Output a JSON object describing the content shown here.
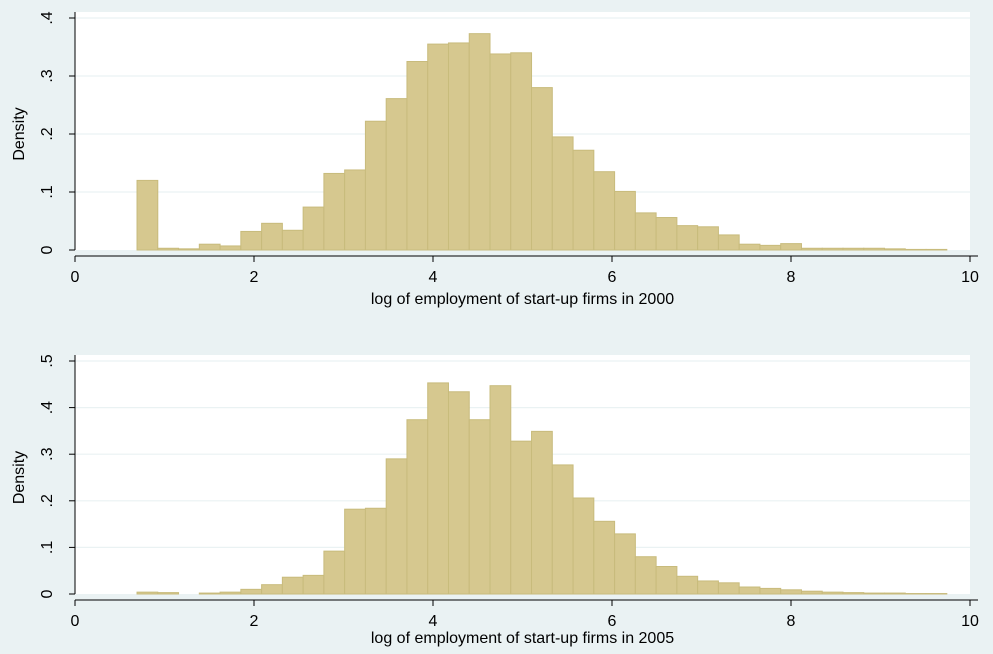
{
  "chart_data": [
    {
      "type": "bar",
      "xlabel": "log of employment of start-up firms in 2000",
      "ylabel": "Density",
      "xlim": [
        0,
        10
      ],
      "ylim": [
        0,
        0.4
      ],
      "xticks": [
        0,
        2,
        4,
        6,
        8,
        10
      ],
      "xtick_labels": [
        "0",
        "2",
        "4",
        "6",
        "8",
        "10"
      ],
      "yticks": [
        0,
        0.1,
        0.2,
        0.3,
        0.4
      ],
      "ytick_labels": [
        "0",
        ".1",
        ".2",
        ".3",
        ".4"
      ],
      "grid": true,
      "bin_width": 0.232,
      "bin_starts": [
        0.693,
        0.925,
        1.157,
        1.389,
        1.621,
        1.853,
        2.085,
        2.317,
        2.549,
        2.781,
        3.013,
        3.245,
        3.477,
        3.709,
        3.941,
        4.173,
        4.405,
        4.637,
        4.869,
        5.101,
        5.333,
        5.565,
        5.797,
        6.029,
        6.261,
        6.493,
        6.725,
        6.957,
        7.189,
        7.421,
        7.653,
        7.885,
        8.117,
        8.349,
        8.581,
        8.813,
        9.045,
        9.277,
        9.509
      ],
      "values": [
        0.12,
        0.003,
        0.002,
        0.01,
        0.007,
        0.032,
        0.046,
        0.034,
        0.074,
        0.132,
        0.138,
        0.222,
        0.261,
        0.325,
        0.355,
        0.357,
        0.373,
        0.338,
        0.34,
        0.28,
        0.195,
        0.172,
        0.135,
        0.101,
        0.064,
        0.056,
        0.042,
        0.04,
        0.026,
        0.01,
        0.008,
        0.011,
        0.003,
        0.003,
        0.003,
        0.003,
        0.002,
        0.001,
        0.001
      ]
    },
    {
      "type": "bar",
      "xlabel": "log of employment of start-up firms in 2005",
      "ylabel": "Density",
      "xlim": [
        0,
        10
      ],
      "ylim": [
        0,
        0.5
      ],
      "xticks": [
        0,
        2,
        4,
        6,
        8,
        10
      ],
      "xtick_labels": [
        "0",
        "2",
        "4",
        "6",
        "8",
        "10"
      ],
      "yticks": [
        0,
        0.1,
        0.2,
        0.3,
        0.4,
        0.5
      ],
      "ytick_labels": [
        "0",
        ".1",
        ".2",
        ".3",
        ".4",
        ".5"
      ],
      "grid": true,
      "bin_width": 0.232,
      "bin_starts": [
        0.693,
        0.925,
        1.157,
        1.389,
        1.621,
        1.853,
        2.085,
        2.317,
        2.549,
        2.781,
        3.013,
        3.245,
        3.477,
        3.709,
        3.941,
        4.173,
        4.405,
        4.637,
        4.869,
        5.101,
        5.333,
        5.565,
        5.797,
        6.029,
        6.261,
        6.493,
        6.725,
        6.957,
        7.189,
        7.421,
        7.653,
        7.885,
        8.117,
        8.349,
        8.581,
        8.813,
        9.045,
        9.277,
        9.509
      ],
      "values": [
        0.004,
        0.003,
        0.0,
        0.002,
        0.004,
        0.01,
        0.02,
        0.036,
        0.04,
        0.092,
        0.182,
        0.184,
        0.29,
        0.374,
        0.453,
        0.434,
        0.374,
        0.447,
        0.328,
        0.349,
        0.277,
        0.206,
        0.156,
        0.129,
        0.08,
        0.059,
        0.038,
        0.028,
        0.024,
        0.015,
        0.012,
        0.009,
        0.006,
        0.004,
        0.003,
        0.002,
        0.002,
        0.001,
        0.001
      ]
    }
  ]
}
